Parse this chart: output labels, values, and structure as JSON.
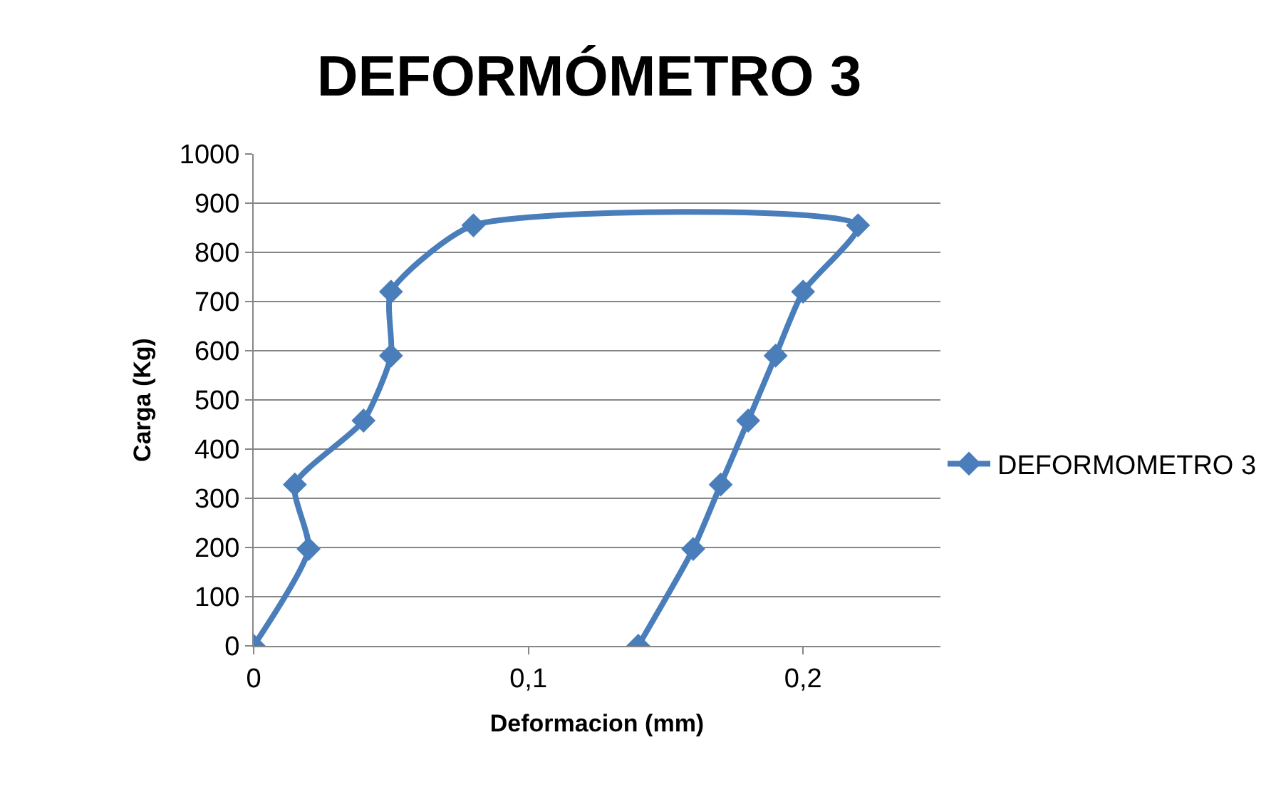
{
  "chart_data": {
    "type": "line",
    "title": "DEFORMÓMETRO 3",
    "xlabel": "Deformacion (mm)",
    "ylabel": "Carga (Kg)",
    "series": [
      {
        "name": "DEFORMOMETRO 3",
        "color": "#4a7ebb",
        "x": [
          0,
          0.02,
          0.015,
          0.04,
          0.05,
          0.05,
          0.08,
          0.22,
          0.2,
          0.19,
          0.18,
          0.17,
          0.16,
          0.14
        ],
        "values": [
          0,
          197,
          328,
          458,
          590,
          720,
          855,
          855,
          720,
          590,
          458,
          328,
          197,
          0
        ]
      }
    ],
    "xlim": [
      0,
      0.25
    ],
    "xticks": [
      0,
      {
        "value": 0.1,
        "label": "0,1"
      },
      {
        "value": 0.2,
        "label": "0,2"
      }
    ],
    "ylim": [
      0,
      1000
    ],
    "yticks": [
      0,
      100,
      200,
      300,
      400,
      500,
      600,
      700,
      800,
      900,
      1000
    ],
    "grid": "y",
    "legend": "right",
    "marker": "diamond",
    "line_style": "solid"
  }
}
